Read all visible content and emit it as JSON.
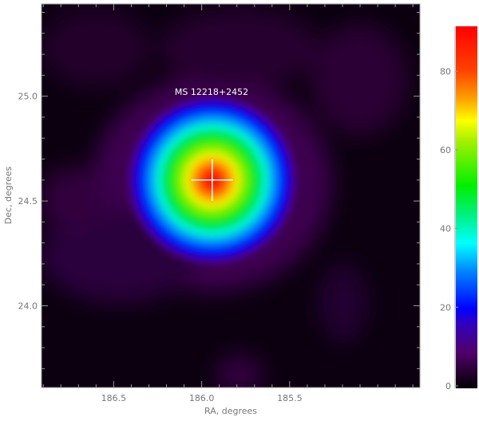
{
  "chart_data": {
    "type": "heatmap",
    "title": "",
    "xlabel": "RA, degrees",
    "ylabel": "Dec, degrees",
    "xlim": [
      186.91,
      184.76
    ],
    "ylim": [
      23.61,
      25.44
    ],
    "xticks": [
      "186.5",
      "186.0",
      "185.5"
    ],
    "xtick_values": [
      186.5,
      186.0,
      185.5
    ],
    "yticks": [
      "24.0",
      "24.5",
      "25.0"
    ],
    "ytick_values": [
      24.0,
      24.5,
      25.0
    ],
    "colormap": "rainbow",
    "colorbar": {
      "range": [
        0,
        91
      ],
      "ticks": [
        "0",
        "20",
        "40",
        "60",
        "80"
      ],
      "tick_values": [
        0,
        20,
        40,
        60,
        80
      ]
    },
    "source": {
      "label": "MS 12218+2452",
      "ra": 185.94,
      "dec": 24.6,
      "peak_value": 91,
      "marker": "cross",
      "marker_color": "#ffffff"
    },
    "background_level": 8
  }
}
